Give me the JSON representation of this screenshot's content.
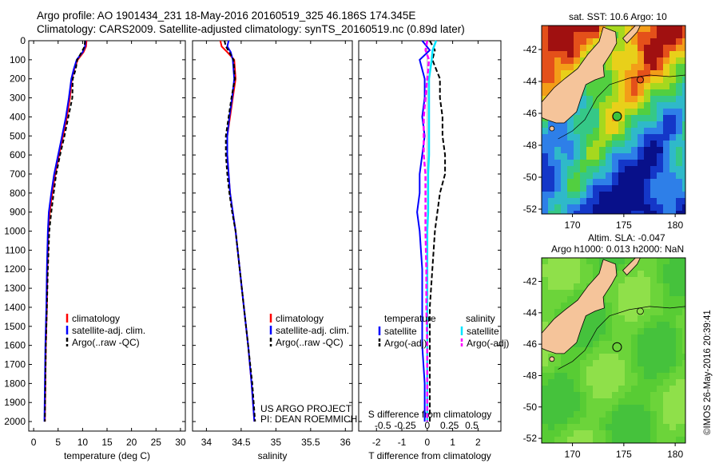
{
  "header": {
    "line1": "Argo profile: AO 1901434_231 18-May-2016 20160519_325 46.186S 174.345E",
    "line2": "Climatology: CARS2009. Satellite-adjusted climatology: synTS_20160519.nc (0.89d later)"
  },
  "colors": {
    "climatology": "#ff0000",
    "satellite": "#0000ff",
    "argo": "#000000",
    "salinity_satellite": "#00e5ff",
    "salinity_argo": "#ff00ff",
    "land": "#f5c49a"
  },
  "footer": {
    "project": "US ARGO PROJECT",
    "pi": "PI: DEAN ROEMMICH",
    "stamp": "©IMOS 26-May-2016 20:39:41"
  },
  "maps": {
    "sst_title": "sat. SST: 10.6 Argo: 10",
    "sla_title1": "Altim. SLA: -0.047",
    "sla_title2": "Argo h1000: 0.013 h2000: NaN",
    "lat_ticks": [
      "-42",
      "-44",
      "-46",
      "-48",
      "-50",
      "-52"
    ],
    "lon_ticks": [
      "170",
      "175",
      "180"
    ],
    "lat_values": [
      -42,
      -44,
      -46,
      -48,
      -50,
      -52
    ],
    "lon_values": [
      170,
      175,
      180
    ],
    "lat_range": [
      -52.3,
      -40.5
    ],
    "lon_range": [
      167,
      181
    ],
    "float_position": {
      "lat": -46.186,
      "lon": 174.345
    }
  },
  "chart_data": [
    {
      "type": "line",
      "panel": "temperature",
      "xlabel": "temperature (deg C)",
      "ylabel": "",
      "xlim": [
        -1,
        31
      ],
      "ylim": [
        2050,
        0
      ],
      "xticks": [
        "0",
        "5",
        "10",
        "15",
        "20",
        "25",
        "30"
      ],
      "xtick_values": [
        0,
        5,
        10,
        15,
        20,
        25,
        30
      ],
      "yticks": [
        "0",
        "100",
        "200",
        "300",
        "400",
        "500",
        "600",
        "700",
        "800",
        "900",
        "1000",
        "1100",
        "1200",
        "1300",
        "1400",
        "1500",
        "1600",
        "1700",
        "1800",
        "1900",
        "2000"
      ],
      "ytick_values": [
        0,
        100,
        200,
        300,
        400,
        500,
        600,
        700,
        800,
        900,
        1000,
        1100,
        1200,
        1300,
        1400,
        1500,
        1600,
        1700,
        1800,
        1900,
        2000
      ],
      "legend": [
        "climatology",
        "satellite-adj. clim.",
        "Argo(..raw -QC)"
      ],
      "series": [
        {
          "name": "climatology",
          "y": [
            0,
            30,
            60,
            100,
            150,
            200,
            300,
            400,
            500,
            600,
            700,
            800,
            900,
            1000,
            1200,
            1400,
            1600,
            1800,
            2000
          ],
          "values": [
            10.8,
            10.7,
            10.2,
            9.0,
            8.3,
            7.8,
            7.4,
            6.8,
            6.0,
            5.2,
            4.4,
            3.8,
            3.3,
            3.0,
            2.8,
            2.7,
            2.5,
            2.4,
            2.3
          ]
        },
        {
          "name": "satellite-adj. clim.",
          "y": [
            0,
            30,
            60,
            100,
            150,
            200,
            300,
            400,
            500,
            600,
            700,
            800,
            900,
            1000,
            1200,
            1400,
            1600,
            1800,
            2000
          ],
          "values": [
            10.6,
            10.5,
            10.0,
            8.8,
            8.2,
            7.7,
            7.2,
            6.6,
            5.8,
            5.0,
            4.2,
            3.6,
            3.1,
            2.9,
            2.7,
            2.6,
            2.4,
            2.3,
            2.2
          ]
        },
        {
          "name": "Argo(..raw -QC)",
          "y": [
            0,
            30,
            60,
            100,
            150,
            200,
            300,
            400,
            500,
            600,
            700,
            800,
            900,
            1000,
            1200,
            1400,
            1600,
            1800,
            2000
          ],
          "values": [
            10.5,
            10.4,
            9.8,
            8.9,
            8.6,
            8.0,
            7.9,
            7.1,
            6.3,
            5.4,
            4.6,
            4.1,
            3.6,
            3.2,
            2.9,
            2.7,
            2.5,
            2.4,
            2.3
          ]
        }
      ]
    },
    {
      "type": "line",
      "panel": "salinity",
      "xlabel": "salinity",
      "xlim": [
        33.8,
        36.1
      ],
      "ylim": [
        2050,
        0
      ],
      "xticks": [
        "34",
        "34.5",
        "35",
        "35.5",
        "36"
      ],
      "xtick_values": [
        34,
        34.5,
        35,
        35.5,
        36
      ],
      "legend": [
        "climatology",
        "satellite-adj. clim.",
        "Argo(..raw -QC)"
      ],
      "series": [
        {
          "name": "climatology",
          "y": [
            0,
            30,
            60,
            100,
            200,
            300,
            400,
            500,
            600,
            700,
            800,
            900,
            1000,
            1200,
            1400,
            1600,
            1800,
            2000
          ],
          "values": [
            34.2,
            34.22,
            34.3,
            34.4,
            34.42,
            34.38,
            34.34,
            34.3,
            34.3,
            34.32,
            34.34,
            34.38,
            34.42,
            34.48,
            34.54,
            34.6,
            34.65,
            34.69
          ]
        },
        {
          "name": "satellite-adj. clim.",
          "y": [
            0,
            30,
            60,
            100,
            200,
            300,
            400,
            500,
            600,
            700,
            800,
            900,
            1000,
            1200,
            1400,
            1600,
            1800,
            2000
          ],
          "values": [
            34.32,
            34.3,
            34.35,
            34.38,
            34.4,
            34.37,
            34.33,
            34.3,
            34.3,
            34.32,
            34.34,
            34.38,
            34.42,
            34.48,
            34.54,
            34.6,
            34.65,
            34.69
          ]
        },
        {
          "name": "Argo(..raw -QC)",
          "y": [
            0,
            30,
            60,
            100,
            200,
            300,
            400,
            500,
            600,
            700,
            800,
            900,
            1000,
            1200,
            1400,
            1600,
            1800,
            2000
          ],
          "values": [
            34.26,
            34.28,
            34.33,
            34.39,
            34.41,
            34.36,
            34.32,
            34.28,
            34.28,
            34.3,
            34.33,
            34.37,
            34.42,
            34.48,
            34.54,
            34.6,
            34.66,
            34.7
          ]
        }
      ]
    },
    {
      "type": "line",
      "panel": "differences",
      "xlabel_top": "S difference from climatology",
      "xlabel": "T difference from climatology",
      "xlim": [
        -2.7,
        2.9
      ],
      "ylim": [
        2050,
        0
      ],
      "xticks": [
        "-2",
        "-1",
        "0",
        "1",
        "2"
      ],
      "xtick_values": [
        -2,
        -1,
        0,
        1,
        2
      ],
      "sticks": [
        "-0.5",
        "-0.25",
        "0",
        "0.25",
        "0.5"
      ],
      "stick_values": [
        -0.5,
        -0.25,
        0,
        0.25,
        0.5
      ],
      "legend_titles": [
        "temperature",
        "salinity"
      ],
      "legend": [
        "satellite",
        "Argo(-adj)",
        "satellite",
        "Argo(-adj)"
      ],
      "series": [
        {
          "name": "satellite",
          "kind": "temperature",
          "y": [
            0,
            50,
            100,
            200,
            300,
            400,
            500,
            600,
            700,
            800,
            900,
            1000,
            1200,
            1400,
            1600,
            1800,
            2000
          ],
          "values": [
            -0.2,
            0.1,
            -0.3,
            -0.1,
            -0.1,
            -0.2,
            -0.1,
            -0.2,
            -0.3,
            -0.3,
            -0.4,
            -0.3,
            -0.2,
            -0.2,
            -0.2,
            -0.1,
            -0.1
          ]
        },
        {
          "name": "Argo(-adj)",
          "kind": "temperature",
          "y": [
            0,
            50,
            100,
            200,
            300,
            400,
            500,
            600,
            700,
            800,
            900,
            1000,
            1200,
            1400,
            1600,
            1800,
            2000
          ],
          "values": [
            0.1,
            0.3,
            0.2,
            0.5,
            0.5,
            0.6,
            0.6,
            0.7,
            0.7,
            0.5,
            0.4,
            0.3,
            0.2,
            0.1,
            0.1,
            0.1,
            0.1
          ]
        },
        {
          "name": "satellite",
          "kind": "salinity",
          "y": [
            0,
            50,
            100,
            200,
            300,
            400,
            500,
            600,
            700,
            800,
            900,
            1000,
            1200,
            1400,
            1600,
            1800,
            2000
          ],
          "values": [
            0.1,
            0.06,
            0.05,
            0.02,
            0.02,
            0.02,
            0.02,
            0.02,
            0.01,
            0.01,
            0.01,
            0.0,
            0.0,
            0.0,
            0.0,
            0.0,
            0.0
          ]
        },
        {
          "name": "Argo(-adj)",
          "kind": "salinity",
          "y": [
            0,
            50,
            100,
            200,
            300,
            400,
            500,
            600,
            700,
            800,
            900,
            1000,
            1200,
            1400,
            1600,
            1800,
            2000
          ],
          "values": [
            0.0,
            -0.02,
            0.02,
            0.0,
            -0.02,
            -0.04,
            -0.04,
            -0.04,
            -0.02,
            -0.02,
            -0.02,
            -0.02,
            -0.01,
            -0.01,
            0.0,
            0.0,
            0.0
          ]
        }
      ]
    }
  ]
}
